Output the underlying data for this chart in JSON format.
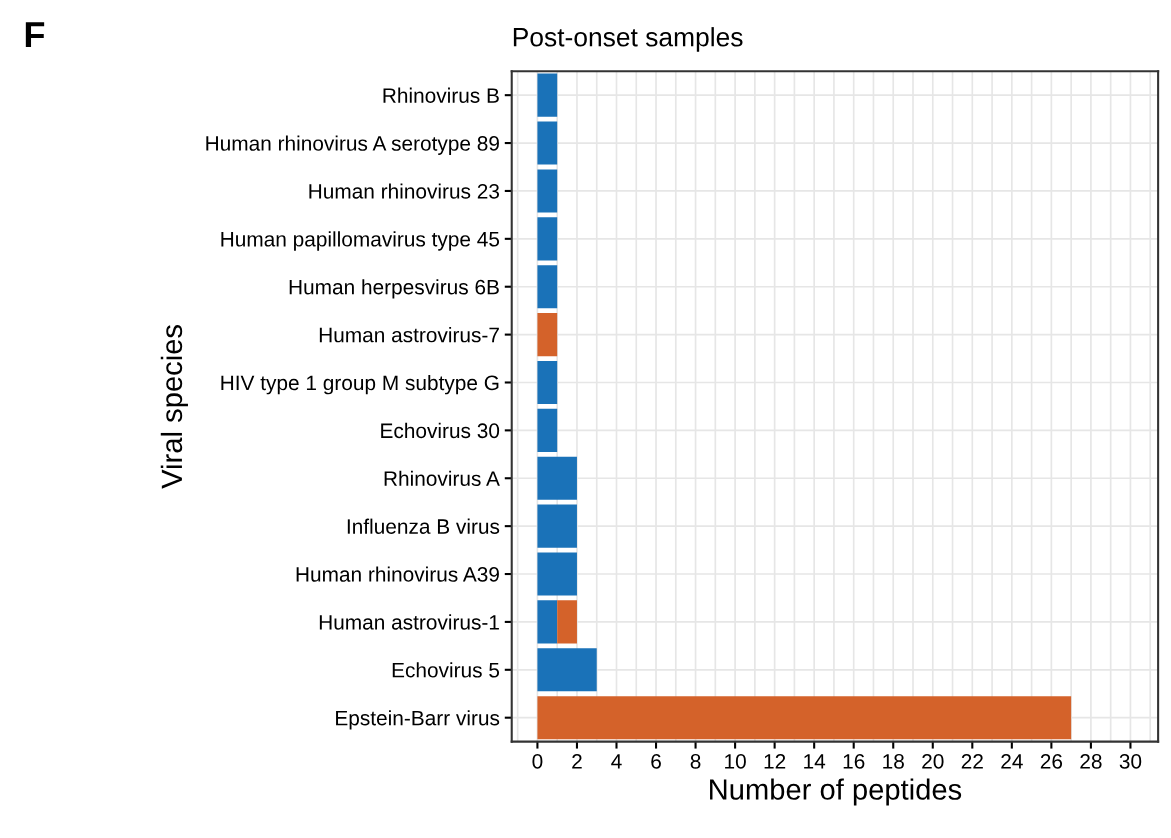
{
  "chart_data": {
    "type": "bar",
    "orientation": "horizontal",
    "stacked": true,
    "title": "Post-onset samples",
    "xlabel": "Number of peptides",
    "ylabel": "Viral species",
    "annotations": [
      "F"
    ],
    "categories": [
      "Rhinovirus B",
      "Human rhinovirus A serotype 89",
      "Human rhinovirus 23",
      "Human papillomavirus type 45",
      "Human herpesvirus 6B",
      "Human astrovirus-7",
      "HIV type 1 group M subtype G",
      "Echovirus 30",
      "Rhinovirus A",
      "Influenza B virus",
      "Human rhinovirus A39",
      "Human astrovirus-1",
      "Echovirus 5",
      "Epstein-Barr virus"
    ],
    "series": [
      {
        "color": "#1a72b8",
        "values": [
          1,
          1,
          1,
          1,
          1,
          0,
          1,
          1,
          2,
          2,
          2,
          1,
          3,
          0
        ]
      },
      {
        "color": "#d4622a",
        "values": [
          0,
          0,
          0,
          0,
          0,
          1,
          0,
          0,
          0,
          0,
          0,
          1,
          0,
          27
        ]
      }
    ],
    "xlim": [
      -1.3,
      31.4
    ],
    "xticks": [
      0,
      2,
      4,
      6,
      8,
      10,
      12,
      14,
      16,
      18,
      20,
      22,
      24,
      26,
      28,
      30
    ],
    "grid": true
  }
}
